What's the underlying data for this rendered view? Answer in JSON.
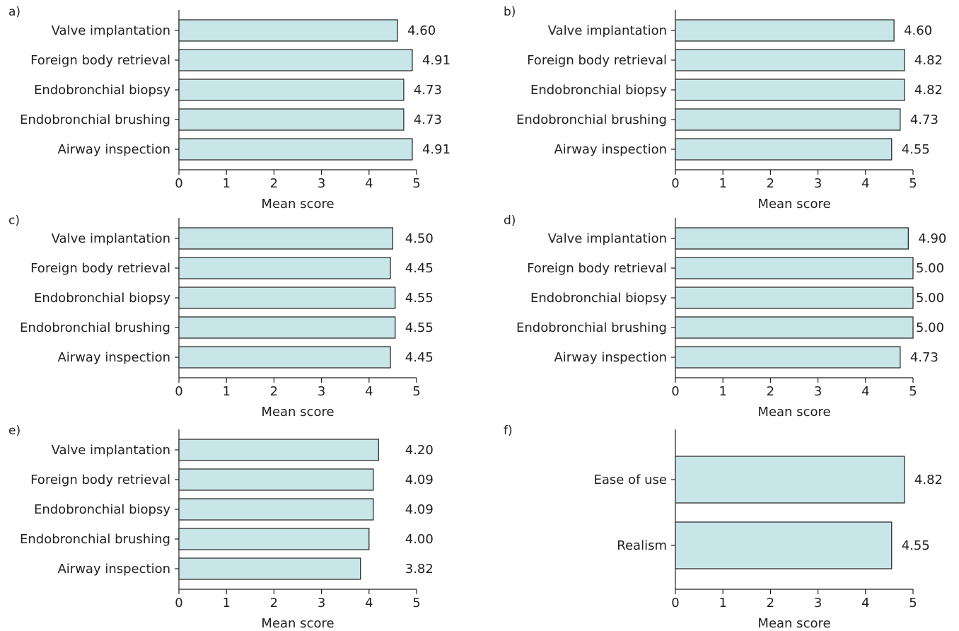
{
  "chart_data": [
    {
      "panel": "a)",
      "type": "bar",
      "orientation": "horizontal",
      "categories": [
        "Valve implantation",
        "Foreign body retrieval",
        "Endobronchial biopsy",
        "Endobronchial brushing",
        "Airway inspection"
      ],
      "values": [
        4.6,
        4.91,
        4.73,
        4.73,
        4.91
      ],
      "value_labels": [
        "4.60",
        "4.91",
        "4.73",
        "4.73",
        "4.91"
      ],
      "xlabel": "Mean score",
      "xlim": [
        0,
        5
      ],
      "xticks": [
        "0",
        "1",
        "2",
        "3",
        "4",
        "5"
      ]
    },
    {
      "panel": "b)",
      "type": "bar",
      "orientation": "horizontal",
      "categories": [
        "Valve implantation",
        "Foreign body retrieval",
        "Endobronchial biopsy",
        "Endobronchial brushing",
        "Airway inspection"
      ],
      "values": [
        4.6,
        4.82,
        4.82,
        4.73,
        4.55
      ],
      "value_labels": [
        "4.60",
        "4.82",
        "4.82",
        "4.73",
        "4.55"
      ],
      "xlabel": "Mean score",
      "xlim": [
        0,
        5
      ],
      "xticks": [
        "0",
        "1",
        "2",
        "3",
        "4",
        "5"
      ]
    },
    {
      "panel": "c)",
      "type": "bar",
      "orientation": "horizontal",
      "categories": [
        "Valve implantation",
        "Foreign body retrieval",
        "Endobronchial biopsy",
        "Endobronchial brushing",
        "Airway inspection"
      ],
      "values": [
        4.5,
        4.45,
        4.55,
        4.55,
        4.45
      ],
      "value_labels": [
        "4.50",
        "4.45",
        "4.55",
        "4.55",
        "4.45"
      ],
      "xlabel": "Mean score",
      "xlim": [
        0,
        5
      ],
      "xticks": [
        "0",
        "1",
        "2",
        "3",
        "4",
        "5"
      ]
    },
    {
      "panel": "d)",
      "type": "bar",
      "orientation": "horizontal",
      "categories": [
        "Valve implantation",
        "Foreign body retrieval",
        "Endobronchial biopsy",
        "Endobronchial brushing",
        "Airway inspection"
      ],
      "values": [
        4.9,
        5.0,
        5.0,
        5.0,
        4.73
      ],
      "value_labels": [
        "4.90",
        "5.00",
        "5.00",
        "5.00",
        "4.73"
      ],
      "xlabel": "Mean score",
      "xlim": [
        0,
        5
      ],
      "xticks": [
        "0",
        "1",
        "2",
        "3",
        "4",
        "5"
      ]
    },
    {
      "panel": "e)",
      "type": "bar",
      "orientation": "horizontal",
      "categories": [
        "Valve implantation",
        "Foreign body retrieval",
        "Endobronchial biopsy",
        "Endobronchial brushing",
        "Airway inspection"
      ],
      "values": [
        4.2,
        4.09,
        4.09,
        4.0,
        3.82
      ],
      "value_labels": [
        "4.20",
        "4.09",
        "4.09",
        "4.00",
        "3.82"
      ],
      "xlabel": "Mean score",
      "xlim": [
        0,
        5
      ],
      "xticks": [
        "0",
        "1",
        "2",
        "3",
        "4",
        "5"
      ]
    },
    {
      "panel": "f)",
      "type": "bar",
      "orientation": "horizontal",
      "categories": [
        "Ease of use",
        "Realism"
      ],
      "values": [
        4.82,
        4.55
      ],
      "value_labels": [
        "4.82",
        "4.55"
      ],
      "xlabel": "Mean score",
      "xlim": [
        0,
        5
      ],
      "xticks": [
        "0",
        "1",
        "2",
        "3",
        "4",
        "5"
      ]
    }
  ],
  "colors": {
    "bar_fill": "#c8e6e8",
    "bar_stroke": "#231f20",
    "text": "#231f20"
  }
}
